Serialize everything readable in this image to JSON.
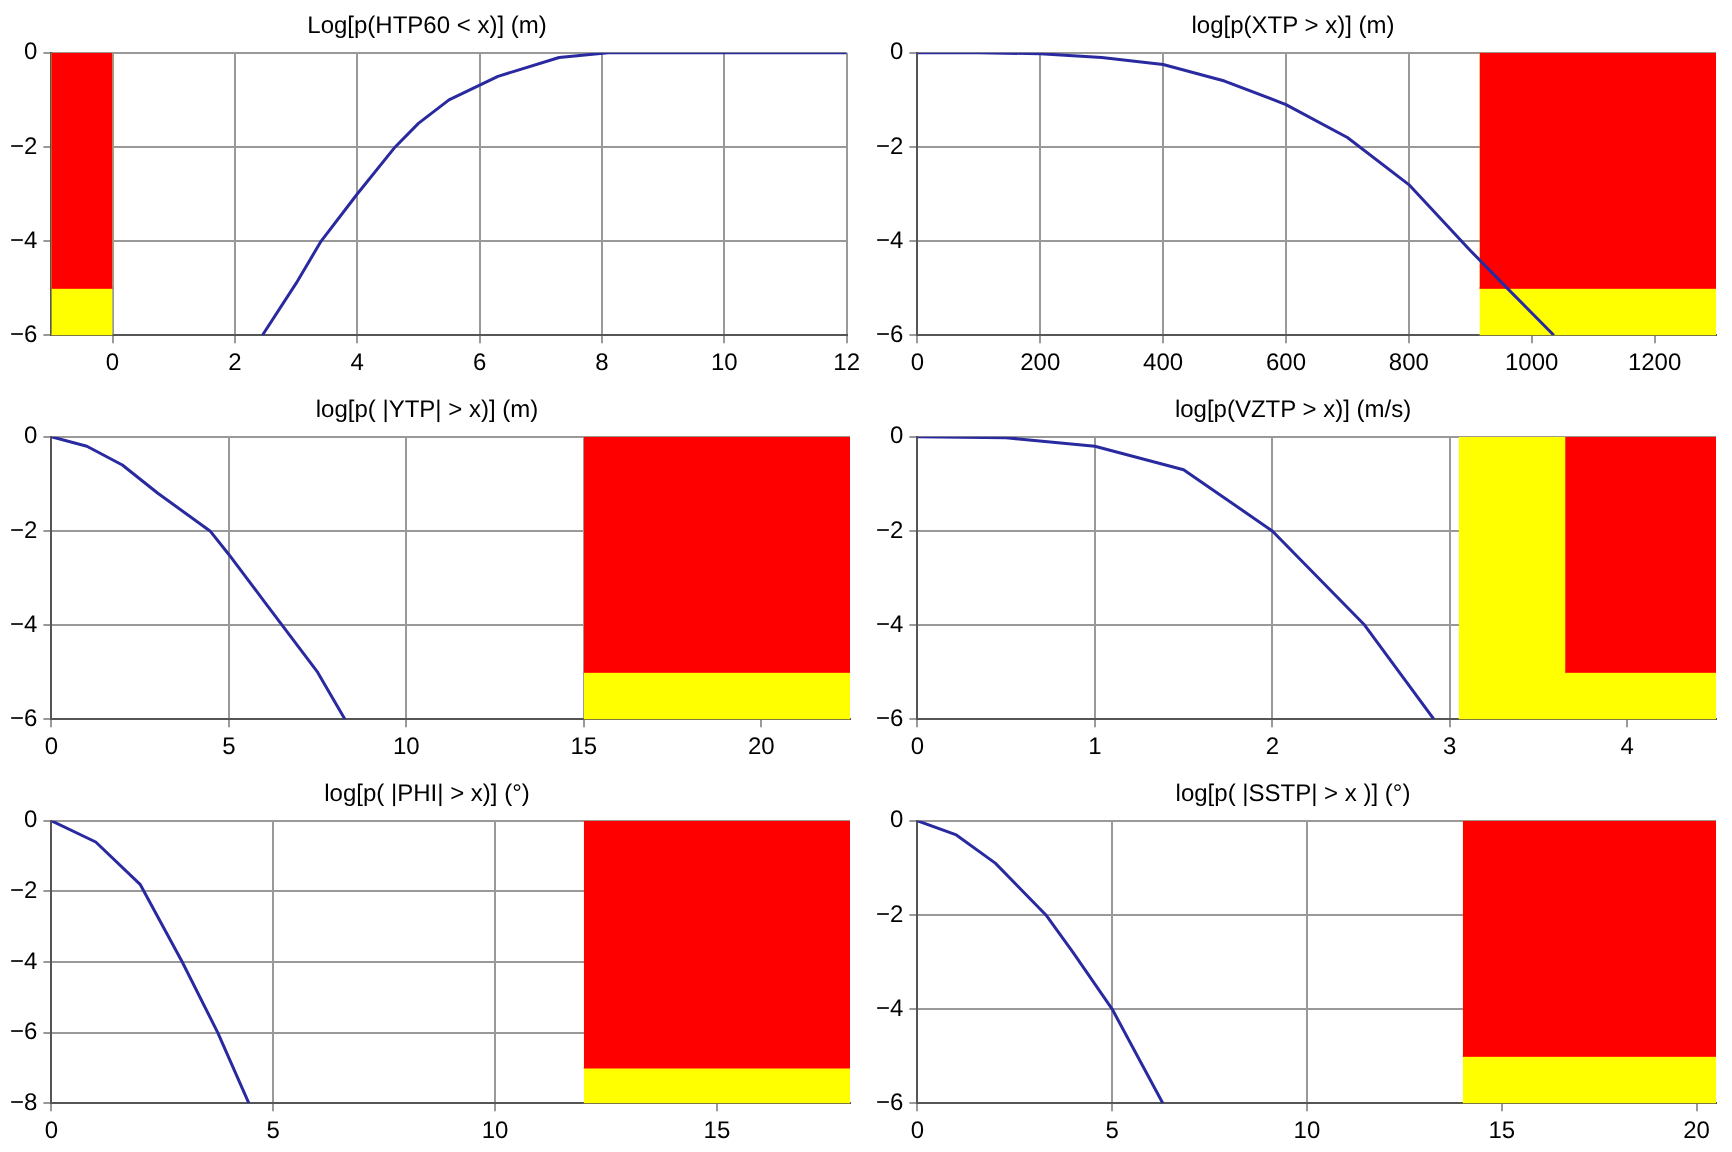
{
  "chart_data": [
    {
      "type": "line",
      "title": "Log[p(HTP60 < x)] (m)",
      "xlim": [
        -1,
        12
      ],
      "xticks": [
        0,
        2,
        4,
        6,
        8,
        10,
        12
      ],
      "ylim": [
        -6,
        0
      ],
      "yticks": [
        -6,
        -4,
        -2,
        0
      ],
      "grid": true,
      "series": [
        {
          "type": "area",
          "color": "#ffff00",
          "x": [
            -1,
            0
          ],
          "values": [
            -6,
            -6
          ]
        },
        {
          "type": "area",
          "color": "#ff0000",
          "x": [
            -1,
            0
          ],
          "values": [
            -5,
            -5
          ]
        },
        {
          "type": "line",
          "color": "#2a2aa0",
          "x": [
            2.45,
            3,
            3.41,
            4,
            4.62,
            5,
            5.5,
            6.3,
            7.3,
            8.1,
            10,
            12
          ],
          "values": [
            -6,
            -4.9,
            -4,
            -3,
            -2,
            -1.5,
            -1,
            -0.5,
            -0.1,
            0,
            0,
            0
          ]
        }
      ]
    },
    {
      "type": "line",
      "title": "log[p(XTP > x)] (m)",
      "xlim": [
        0,
        1300
      ],
      "xticks": [
        0,
        200,
        400,
        600,
        800,
        1000,
        1200
      ],
      "ylim": [
        -6,
        0
      ],
      "yticks": [
        -6,
        -4,
        -2,
        0
      ],
      "grid": true,
      "series": [
        {
          "type": "area",
          "color": "#ffff00",
          "x": [
            915,
            1300
          ],
          "values": [
            -6,
            -6
          ]
        },
        {
          "type": "area",
          "color": "#ff0000",
          "x": [
            915,
            1300
          ],
          "values": [
            -5,
            -5
          ]
        },
        {
          "type": "line",
          "color": "#2a2aa0",
          "x": [
            0,
            100,
            200,
            300,
            400,
            500,
            600,
            700,
            800,
            900,
            960,
            1036
          ],
          "values": [
            0,
            0,
            -0.02,
            -0.1,
            -0.25,
            -0.6,
            -1.1,
            -1.8,
            -2.8,
            -4.2,
            -5,
            -6
          ]
        }
      ]
    },
    {
      "type": "line",
      "title": "log[p( |YTP| > x)] (m)",
      "xlim": [
        0,
        22.5
      ],
      "xticks": [
        0,
        5,
        10,
        15,
        20
      ],
      "ylim": [
        -6,
        0
      ],
      "yticks": [
        -6,
        -4,
        -2,
        0
      ],
      "grid": true,
      "series": [
        {
          "type": "area",
          "color": "#ffff00",
          "x": [
            15,
            22.5
          ],
          "values": [
            -6,
            -6
          ]
        },
        {
          "type": "area",
          "color": "#ff0000",
          "x": [
            15,
            22.5
          ],
          "values": [
            -5,
            -5
          ]
        },
        {
          "type": "line",
          "color": "#2a2aa0",
          "x": [
            0,
            1,
            2,
            3,
            4.47,
            5,
            6,
            6.5,
            7.5,
            8.27
          ],
          "values": [
            0,
            -0.2,
            -0.6,
            -1.2,
            -2,
            -2.5,
            -3.5,
            -4,
            -5,
            -6
          ]
        }
      ]
    },
    {
      "type": "line",
      "title": "log[p(VZTP > x)] (m/s)",
      "xlim": [
        0,
        4.5
      ],
      "xticks": [
        0,
        1,
        2,
        3,
        4
      ],
      "ylim": [
        -6,
        0
      ],
      "yticks": [
        -6,
        -4,
        -2,
        0
      ],
      "grid": true,
      "series": [
        {
          "type": "area",
          "color": "#ffff00",
          "x": [
            3.05,
            4.5
          ],
          "values": [
            -6,
            -6
          ]
        },
        {
          "type": "area",
          "color": "#ff0000",
          "x": [
            3.65,
            4.5
          ],
          "values": [
            -5,
            -5
          ]
        },
        {
          "type": "line",
          "color": "#2a2aa0",
          "x": [
            0,
            0.5,
            1,
            1.5,
            2,
            2.52,
            2.91
          ],
          "values": [
            0,
            -0.02,
            -0.2,
            -0.7,
            -2,
            -4,
            -6
          ]
        }
      ]
    },
    {
      "type": "line",
      "title": "log[p( |PHI| > x)] (°)",
      "xlim": [
        0,
        18
      ],
      "xticks": [
        0,
        5,
        10,
        15
      ],
      "ylim": [
        -8,
        0
      ],
      "yticks": [
        -8,
        -6,
        -4,
        -2,
        0
      ],
      "grid": true,
      "series": [
        {
          "type": "area",
          "color": "#ffff00",
          "x": [
            12,
            18
          ],
          "values": [
            -8,
            -8
          ]
        },
        {
          "type": "area",
          "color": "#ff0000",
          "x": [
            12,
            18
          ],
          "values": [
            -7,
            -7
          ]
        },
        {
          "type": "line",
          "color": "#2a2aa0",
          "x": [
            0,
            1,
            2,
            2.95,
            3.75,
            4.45
          ],
          "values": [
            0,
            -0.6,
            -1.8,
            -4,
            -6,
            -8
          ]
        }
      ]
    },
    {
      "type": "line",
      "title": "log[p( |SSTP| > x )] (°)",
      "xlim": [
        0,
        20.5
      ],
      "xticks": [
        0,
        5,
        10,
        15,
        20
      ],
      "ylim": [
        -6,
        0
      ],
      "yticks": [
        -6,
        -4,
        -2,
        0
      ],
      "grid": true,
      "series": [
        {
          "type": "area",
          "color": "#ffff00",
          "x": [
            14,
            20.5
          ],
          "values": [
            -6,
            -6
          ]
        },
        {
          "type": "area",
          "color": "#ff0000",
          "x": [
            14,
            20.5
          ],
          "values": [
            -5,
            -5
          ]
        },
        {
          "type": "line",
          "color": "#2a2aa0",
          "x": [
            0,
            1,
            2,
            3.3,
            4,
            5,
            6.3
          ],
          "values": [
            0,
            -0.3,
            -0.9,
            -2,
            -2.8,
            -4,
            -6
          ]
        }
      ]
    }
  ]
}
